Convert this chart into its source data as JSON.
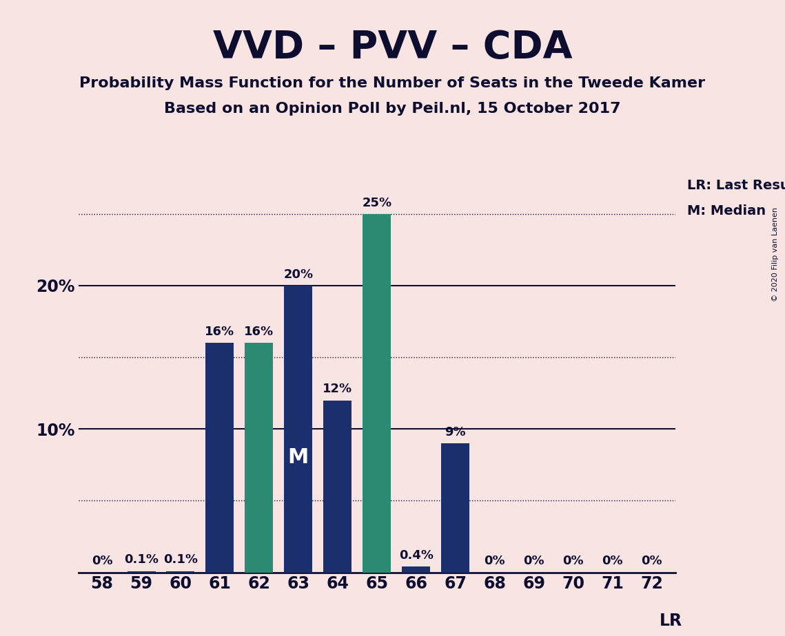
{
  "title": "VVD – PVV – CDA",
  "subtitle1": "Probability Mass Function for the Number of Seats in the Tweede Kamer",
  "subtitle2": "Based on an Opinion Poll by Peil.nl, 15 October 2017",
  "copyright": "© 2020 Filip van Laenen",
  "categories": [
    58,
    59,
    60,
    61,
    62,
    63,
    64,
    65,
    66,
    67,
    68,
    69,
    70,
    71,
    72
  ],
  "values": [
    0.0,
    0.1,
    0.1,
    16.0,
    16.0,
    20.0,
    12.0,
    25.0,
    0.4,
    9.0,
    0.0,
    0.0,
    0.0,
    0.0,
    0.0
  ],
  "bar_colors": [
    "#1b2f6e",
    "#1b2f6e",
    "#1b2f6e",
    "#1b2f6e",
    "#2a8a72",
    "#1b2f6e",
    "#1b2f6e",
    "#2a8a72",
    "#1b2f6e",
    "#1b2f6e",
    "#1b2f6e",
    "#1b2f6e",
    "#1b2f6e",
    "#1b2f6e",
    "#1b2f6e"
  ],
  "background_color": "#f9e4e4",
  "text_color": "#0d0d30",
  "ylim_max": 27.5,
  "solid_lines": [
    10,
    20
  ],
  "dotted_lines": [
    5,
    15,
    25
  ],
  "ytick_positions": [
    10,
    20
  ],
  "ytick_labels": [
    "10%",
    "20%"
  ],
  "median_seat": 63,
  "median_label": "M",
  "lr_line_level": 25.0,
  "lr_legend_label": "LR: Last Result",
  "m_legend_label": "M: Median",
  "lr_bar_label": "LR",
  "label_fontsize": 14,
  "bar_label_fontsize": 13,
  "tick_fontsize": 17,
  "title_fontsize": 40,
  "subtitle_fontsize": 16
}
